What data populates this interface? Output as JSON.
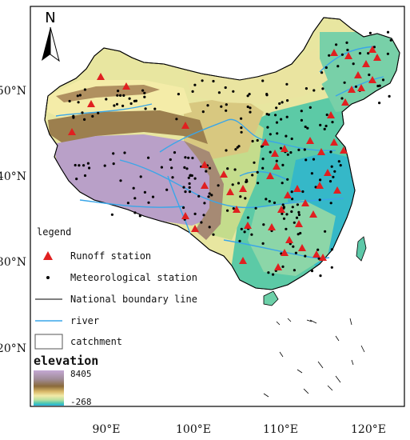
{
  "map": {
    "lat_labels": [
      "50°N",
      "40°N",
      "30°N",
      "20°N"
    ],
    "lon_labels": [
      "90°E",
      "100°E",
      "110°E",
      "120°E"
    ],
    "north_label": "N"
  },
  "legend": {
    "title": "legend",
    "items": [
      {
        "symbol": "triangle",
        "label": "Runoff station",
        "color": "#e02020"
      },
      {
        "symbol": "dot",
        "label": "Meteorological station",
        "color": "#000000"
      },
      {
        "symbol": "line",
        "label": "National boundary line",
        "color": "#000000"
      },
      {
        "symbol": "line",
        "label": "river",
        "color": "#3aa6e8"
      },
      {
        "symbol": "box",
        "label": "catchment",
        "color": "#555555"
      }
    ]
  },
  "elevation": {
    "title": "elevation",
    "max": "8405",
    "min": "-268",
    "colors": [
      "#b49ac0",
      "#a08a8a",
      "#8a6a3a",
      "#c8a860",
      "#f0e6a0",
      "#c8e0a0",
      "#60d0b0",
      "#30b8e0"
    ]
  },
  "colors": {
    "plateau": "#b9a0c8",
    "desert": "#efe7a4",
    "mid": "#c9d98a",
    "lowland": "#56c9a6",
    "coast": "#2fb3c6",
    "ridge": "#9c7f4e",
    "river": "#3aa6e8",
    "runoff": "#e02020"
  }
}
